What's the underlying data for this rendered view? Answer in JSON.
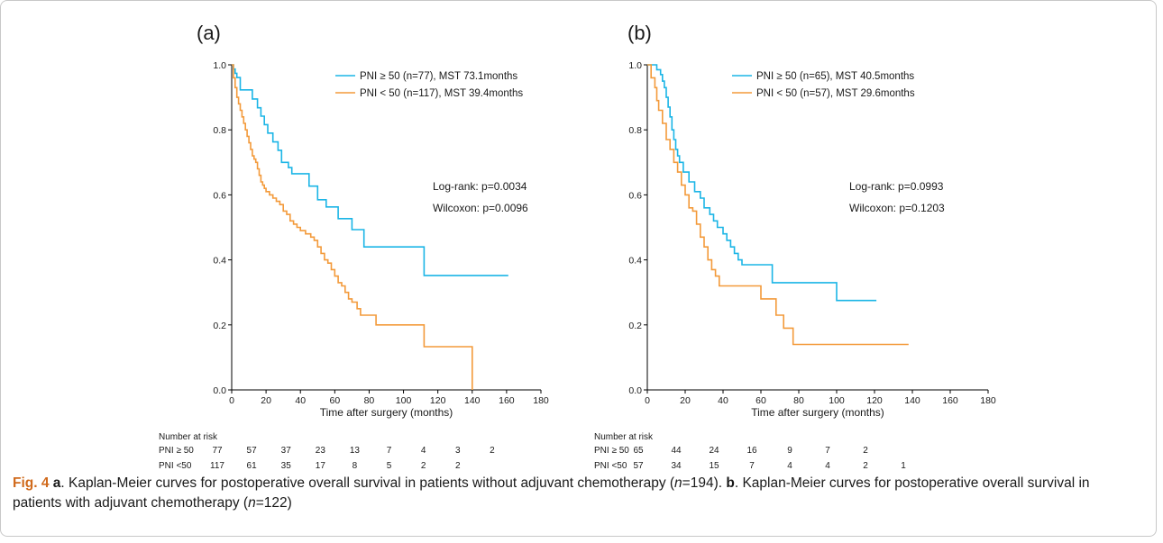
{
  "colors": {
    "high": "#1bb5e6",
    "low": "#f39a3a",
    "axis": "#000000",
    "fig_label": "#d06a1c"
  },
  "chart_data": [
    {
      "panel": "(a)",
      "type": "line",
      "subtype": "kaplan-meier step",
      "xlabel": "Time after surgery (months)",
      "ylabel": "",
      "xlim": [
        0,
        180
      ],
      "ylim": [
        0.0,
        1.0
      ],
      "x_ticks": [
        "0",
        "20",
        "40",
        "60",
        "80",
        "100",
        "120",
        "140",
        "160",
        "180"
      ],
      "y_ticks": [
        "0.0",
        "0.2",
        "0.4",
        "0.6",
        "0.8",
        "1.0"
      ],
      "grid": false,
      "legend_position": "top-right",
      "series": [
        {
          "name": "PNI ≥ 50 (n=77), MST 73.1months",
          "color_key": "high",
          "x": [
            0,
            1,
            2,
            3,
            5,
            12,
            15,
            17,
            19,
            21,
            24,
            27,
            29,
            33,
            35,
            45,
            50,
            55,
            62,
            70,
            77,
            88,
            112,
            161
          ],
          "y": [
            1.0,
            0.987,
            0.974,
            0.961,
            0.923,
            0.895,
            0.868,
            0.842,
            0.816,
            0.79,
            0.763,
            0.737,
            0.7,
            0.684,
            0.665,
            0.627,
            0.585,
            0.563,
            0.527,
            0.493,
            0.44,
            0.44,
            0.352,
            0.352
          ]
        },
        {
          "name": "PNI < 50 (n=117), MST 39.4months",
          "color_key": "low",
          "x": [
            0,
            1,
            2,
            3,
            4,
            5,
            6,
            7,
            8,
            9,
            10,
            11,
            12,
            13,
            14,
            15,
            16,
            17,
            18,
            19,
            20,
            22,
            24,
            26,
            28,
            30,
            32,
            34,
            36,
            38,
            40,
            43,
            46,
            48,
            50,
            52,
            54,
            56,
            58,
            60,
            62,
            64,
            66,
            68,
            70,
            73,
            75,
            78,
            80,
            84,
            112,
            140
          ],
          "y": [
            1.0,
            0.96,
            0.93,
            0.9,
            0.88,
            0.86,
            0.84,
            0.82,
            0.8,
            0.78,
            0.76,
            0.74,
            0.72,
            0.71,
            0.7,
            0.68,
            0.66,
            0.64,
            0.63,
            0.62,
            0.61,
            0.6,
            0.59,
            0.58,
            0.57,
            0.55,
            0.54,
            0.52,
            0.51,
            0.5,
            0.49,
            0.48,
            0.47,
            0.46,
            0.44,
            0.42,
            0.4,
            0.39,
            0.37,
            0.35,
            0.33,
            0.32,
            0.3,
            0.28,
            0.27,
            0.25,
            0.23,
            0.23,
            0.23,
            0.2,
            0.133,
            0.0
          ]
        }
      ],
      "annotations": [
        "Log-rank: p=0.0034",
        "Wilcoxon: p=0.0096"
      ],
      "risk_table": {
        "title": "Number at risk",
        "rows": [
          {
            "label": "PNI ≥ 50",
            "values": [
              "77",
              "57",
              "37",
              "23",
              "13",
              "7",
              "4",
              "3",
              "2"
            ]
          },
          {
            "label": "PNI <50",
            "values": [
              "117",
              "61",
              "35",
              "17",
              "8",
              "5",
              "2",
              "2"
            ]
          }
        ]
      }
    },
    {
      "panel": "(b)",
      "type": "line",
      "subtype": "kaplan-meier step",
      "xlabel": "Time after surgery (months)",
      "ylabel": "",
      "xlim": [
        0,
        180
      ],
      "ylim": [
        0.0,
        1.0
      ],
      "x_ticks": [
        "0",
        "20",
        "40",
        "60",
        "80",
        "100",
        "120",
        "140",
        "160",
        "180"
      ],
      "y_ticks": [
        "0.0",
        "0.2",
        "0.4",
        "0.6",
        "0.8",
        "1.0"
      ],
      "grid": false,
      "legend_position": "top-right",
      "series": [
        {
          "name": "PNI ≥ 50 (n=65), MST 40.5months",
          "color_key": "high",
          "x": [
            0,
            5,
            7,
            8,
            9,
            10,
            11,
            12,
            13,
            14,
            15,
            16,
            17,
            19,
            22,
            25,
            28,
            30,
            33,
            35,
            37,
            40,
            42,
            44,
            46,
            48,
            50,
            53,
            60,
            66,
            100,
            121
          ],
          "y": [
            1.0,
            0.985,
            0.97,
            0.95,
            0.93,
            0.9,
            0.87,
            0.84,
            0.8,
            0.77,
            0.74,
            0.72,
            0.7,
            0.67,
            0.64,
            0.61,
            0.59,
            0.56,
            0.54,
            0.52,
            0.5,
            0.48,
            0.46,
            0.44,
            0.42,
            0.4,
            0.385,
            0.385,
            0.385,
            0.33,
            0.275,
            0.275
          ]
        },
        {
          "name": "PNI < 50 (n=57), MST 29.6months",
          "color_key": "low",
          "x": [
            0,
            2,
            4,
            5,
            6,
            8,
            10,
            12,
            14,
            16,
            18,
            20,
            22,
            24,
            26,
            28,
            30,
            32,
            34,
            36,
            38,
            40,
            50,
            60,
            65,
            68,
            72,
            77,
            138
          ],
          "y": [
            1.0,
            0.96,
            0.93,
            0.89,
            0.86,
            0.82,
            0.77,
            0.74,
            0.7,
            0.67,
            0.63,
            0.6,
            0.56,
            0.55,
            0.51,
            0.47,
            0.44,
            0.4,
            0.37,
            0.35,
            0.32,
            0.32,
            0.32,
            0.28,
            0.28,
            0.23,
            0.19,
            0.14,
            0.14
          ]
        }
      ],
      "annotations": [
        "Log-rank: p=0.0993",
        "Wilcoxon: p=0.1203"
      ],
      "risk_table": {
        "title": "Number at risk",
        "rows": [
          {
            "label": "PNI ≥ 50",
            "values": [
              "65",
              "44",
              "24",
              "16",
              "9",
              "7",
              "2"
            ]
          },
          {
            "label": "PNI <50",
            "values": [
              "57",
              "34",
              "15",
              "7",
              "4",
              "4",
              "2",
              "1"
            ]
          }
        ]
      }
    }
  ],
  "caption": {
    "fig_label": "Fig. 4",
    "a_label": "a",
    "a_text_1": ". Kaplan-Meier curves for postoperative overall survival in patients without adjuvant chemotherapy (",
    "a_n_symbol": "n",
    "a_n_value": "=194). ",
    "b_label": "b",
    "b_text_1": ". Kaplan-Meier curves for postoperative overall survival in patients with adjuvant chemotherapy (",
    "b_n_symbol": "n",
    "b_n_value": "=122)"
  }
}
